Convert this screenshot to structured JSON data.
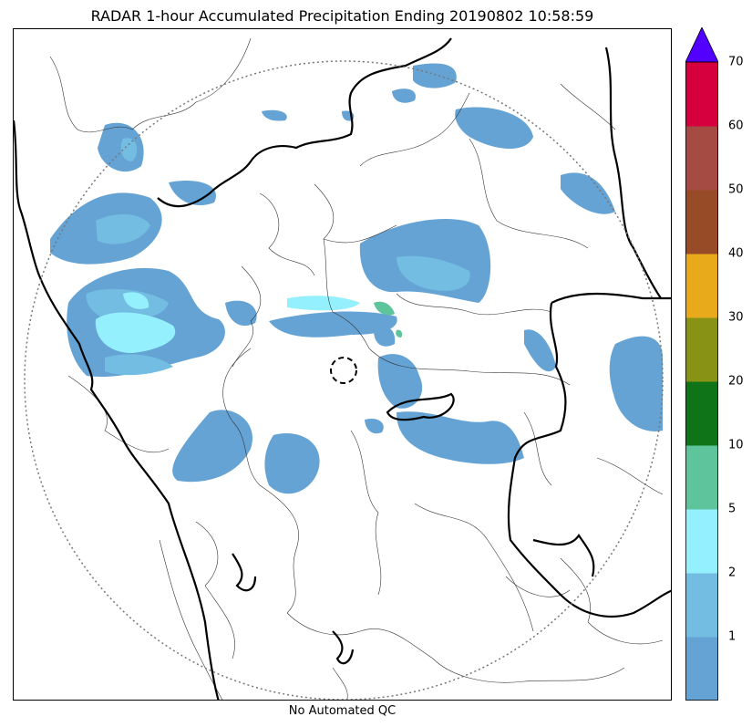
{
  "title": "RADAR 1-hour Accumulated Precipitation Ending 20190802 10:58:59",
  "footer": "No Automated QC",
  "colorbar": {
    "levels": [
      {
        "label": "",
        "color": "#64a3d4"
      },
      {
        "label": "1",
        "color": "#73bde3"
      },
      {
        "label": "2",
        "color": "#94f0fc"
      },
      {
        "label": "5",
        "color": "#5ec49b"
      },
      {
        "label": "10",
        "color": "#0f7318"
      },
      {
        "label": "20",
        "color": "#889214"
      },
      {
        "label": "30",
        "color": "#e8a91b"
      },
      {
        "label": "40",
        "color": "#984b27"
      },
      {
        "label": "50",
        "color": "#a64a44"
      },
      {
        "label": "60",
        "color": "#d7003f"
      },
      {
        "label": "70",
        "color": ""
      }
    ],
    "extend_color": "#5200ff"
  }
}
